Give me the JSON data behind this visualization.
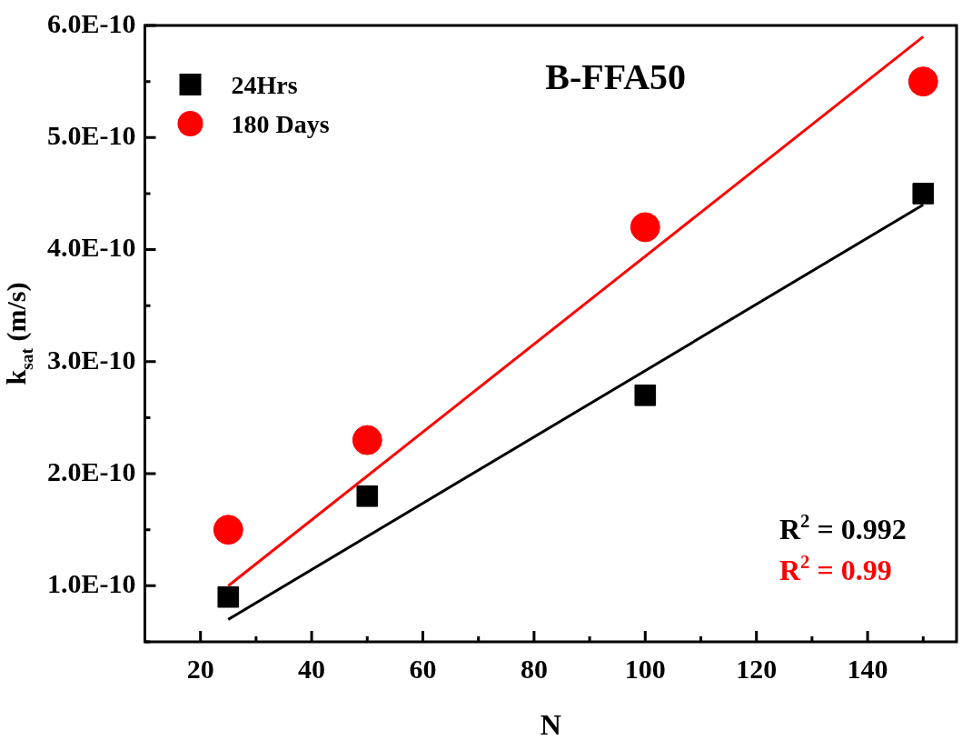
{
  "chart_data": {
    "type": "scatter",
    "title": "B-FFA50",
    "xlabel": "N",
    "ylabel": "k$_{sat}$ (m/s)",
    "xlim": [
      10,
      156
    ],
    "xticks": [
      20,
      40,
      60,
      80,
      100,
      120,
      140
    ],
    "ylim": [
      5e-11,
      6e-10
    ],
    "yticks": [
      {
        "value": 1e-10,
        "label": "1.0E-10"
      },
      {
        "value": 2e-10,
        "label": "2.0E-10"
      },
      {
        "value": 3e-10,
        "label": "3.0E-10"
      },
      {
        "value": 4e-10,
        "label": "4.0E-10"
      },
      {
        "value": 5e-10,
        "label": "5.0E-10"
      },
      {
        "value": 6e-10,
        "label": "6.0E-10"
      }
    ],
    "grid": false,
    "legend": "top left",
    "annotations": [
      "R$^{2}$ = 0.992",
      "R$^{2}$ = 0.99"
    ],
    "series": [
      {
        "name": "24Hrs",
        "type": "scatter",
        "marker": "square",
        "color": "#000000",
        "x": [
          25,
          50,
          100,
          150
        ],
        "values": [
          9e-11,
          1.8e-10,
          2.7e-10,
          4.5e-10
        ]
      },
      {
        "name": "180 Days",
        "type": "scatter",
        "marker": "circle",
        "color": "#ff0000",
        "x": [
          25,
          50,
          100,
          150
        ],
        "values": [
          1.5e-10,
          2.3e-10,
          4.2e-10,
          5.5e-10
        ]
      },
      {
        "type": "line",
        "color": "#000000",
        "x": [
          25,
          150
        ],
        "values": [
          7e-11,
          4.4e-10
        ]
      },
      {
        "type": "line",
        "color": "#ff0000",
        "x": [
          25,
          150
        ],
        "values": [
          1e-10,
          5.9e-10
        ]
      }
    ]
  }
}
